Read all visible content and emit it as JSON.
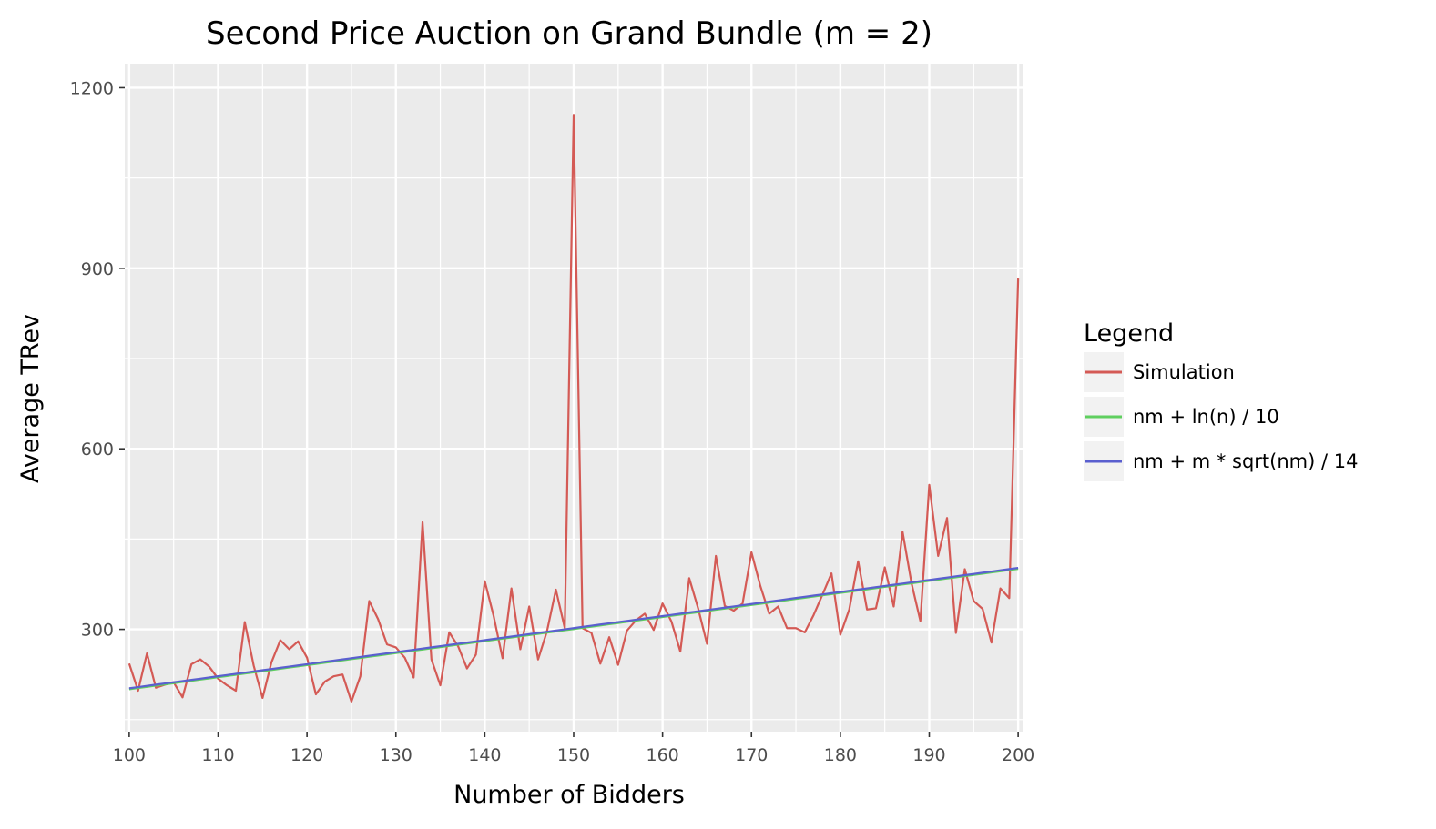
{
  "chart_data": {
    "type": "line",
    "title": "Second Price Auction on Grand Bundle (m = 2)",
    "xlabel": "Number of Bidders",
    "ylabel": "Average TRev",
    "xlim": [
      99.5,
      200.5
    ],
    "ylim": [
      130,
      1240
    ],
    "xticks": [
      100,
      110,
      120,
      130,
      140,
      150,
      160,
      170,
      180,
      190,
      200
    ],
    "yticks": [
      300,
      600,
      900,
      1200
    ],
    "grid": true,
    "legend": {
      "title": "Legend",
      "position": "right",
      "entries": [
        "Simulation",
        "nm + ln(n) / 10",
        "nm + m * sqrt(nm) / 14"
      ]
    },
    "colors": {
      "panel": "#ebebeb",
      "grid": "#ffffff",
      "Simulation": "#d45a55",
      "nm + ln(n) / 10": "#5fcf5f",
      "nm + m * sqrt(nm) / 14": "#5a5fcf"
    },
    "x": [
      100,
      101,
      102,
      103,
      104,
      105,
      106,
      107,
      108,
      109,
      110,
      111,
      112,
      113,
      114,
      115,
      116,
      117,
      118,
      119,
      120,
      121,
      122,
      123,
      124,
      125,
      126,
      127,
      128,
      129,
      130,
      131,
      132,
      133,
      134,
      135,
      136,
      137,
      138,
      139,
      140,
      141,
      142,
      143,
      144,
      145,
      146,
      147,
      148,
      149,
      150,
      151,
      152,
      153,
      154,
      155,
      156,
      157,
      158,
      159,
      160,
      161,
      162,
      163,
      164,
      165,
      166,
      167,
      168,
      169,
      170,
      171,
      172,
      173,
      174,
      175,
      176,
      177,
      178,
      179,
      180,
      181,
      182,
      183,
      184,
      185,
      186,
      187,
      188,
      189,
      190,
      191,
      192,
      193,
      194,
      195,
      196,
      197,
      198,
      199,
      200
    ],
    "series": [
      {
        "name": "Simulation",
        "values": [
          243,
          198,
          260,
          203,
          208,
          212,
          187,
          242,
          250,
          238,
          218,
          207,
          198,
          312,
          240,
          186,
          245,
          282,
          267,
          280,
          253,
          192,
          213,
          222,
          225,
          180,
          222,
          347,
          317,
          275,
          270,
          253,
          220,
          478,
          250,
          207,
          295,
          272,
          235,
          258,
          380,
          322,
          252,
          368,
          267,
          338,
          250,
          297,
          366,
          302,
          1155,
          302,
          294,
          243,
          287,
          241,
          298,
          315,
          326,
          299,
          343,
          313,
          263,
          385,
          335,
          276,
          422,
          339,
          331,
          343,
          428,
          372,
          326,
          338,
          302,
          302,
          295,
          324,
          358,
          393,
          291,
          333,
          413,
          333,
          335,
          403,
          338,
          462,
          377,
          314,
          540,
          422,
          485,
          294,
          400,
          347,
          334,
          278,
          368,
          352,
          883
        ]
      },
      {
        "name": "nm + ln(n) / 10",
        "values": [
          200.46,
          202.46,
          204.46,
          206.46,
          208.46,
          210.47,
          212.47,
          214.47,
          216.47,
          218.47,
          220.47,
          222.47,
          224.47,
          226.47,
          228.47,
          230.47,
          232.48,
          234.48,
          236.48,
          238.48,
          240.48,
          242.48,
          244.48,
          246.48,
          248.48,
          250.48,
          252.48,
          254.48,
          256.49,
          258.49,
          260.49,
          262.49,
          264.49,
          266.49,
          268.49,
          270.49,
          272.49,
          274.49,
          276.49,
          278.49,
          280.49,
          282.49,
          284.5,
          286.5,
          288.5,
          290.5,
          292.5,
          294.5,
          296.5,
          298.5,
          300.5,
          302.5,
          304.5,
          306.5,
          308.5,
          310.5,
          312.5,
          314.5,
          316.51,
          318.51,
          320.51,
          322.51,
          324.51,
          326.51,
          328.51,
          330.51,
          332.51,
          334.51,
          336.51,
          338.51,
          340.51,
          342.51,
          344.51,
          346.51,
          348.52,
          350.52,
          352.52,
          354.52,
          356.52,
          358.52,
          360.52,
          362.52,
          364.52,
          366.52,
          368.52,
          370.52,
          372.52,
          374.52,
          376.52,
          378.52,
          380.52,
          382.53,
          384.53,
          386.53,
          388.53,
          390.53,
          392.53,
          394.53,
          396.53,
          398.53,
          400.53
        ]
      },
      {
        "name": "nm + m * sqrt(nm) / 14",
        "values": [
          202.02,
          204.03,
          206.03,
          208.03,
          210.03,
          212.03,
          214.03,
          216.03,
          218.03,
          220.03,
          222.03,
          224.03,
          226.04,
          228.04,
          230.04,
          232.04,
          234.04,
          236.04,
          238.04,
          240.04,
          242.04,
          244.04,
          246.04,
          248.04,
          250.04,
          252.04,
          254.05,
          256.05,
          258.05,
          260.05,
          262.05,
          264.05,
          266.05,
          268.05,
          270.05,
          272.05,
          274.05,
          276.05,
          278.05,
          280.05,
          282.06,
          284.06,
          286.06,
          288.06,
          290.06,
          292.06,
          294.06,
          296.06,
          298.06,
          300.06,
          302.06,
          304.06,
          306.06,
          308.06,
          310.06,
          312.06,
          314.07,
          316.07,
          318.07,
          320.07,
          322.07,
          324.07,
          326.07,
          328.07,
          330.07,
          332.07,
          334.07,
          336.07,
          338.07,
          340.07,
          342.07,
          344.07,
          346.07,
          348.08,
          350.08,
          352.08,
          354.08,
          356.08,
          358.08,
          360.08,
          362.08,
          364.08,
          366.08,
          368.08,
          370.08,
          372.08,
          374.08,
          376.08,
          378.08,
          380.08,
          382.08,
          384.08,
          386.09,
          388.09,
          390.09,
          392.09,
          394.09,
          396.09,
          398.09,
          400.09,
          402.09
        ]
      }
    ]
  }
}
